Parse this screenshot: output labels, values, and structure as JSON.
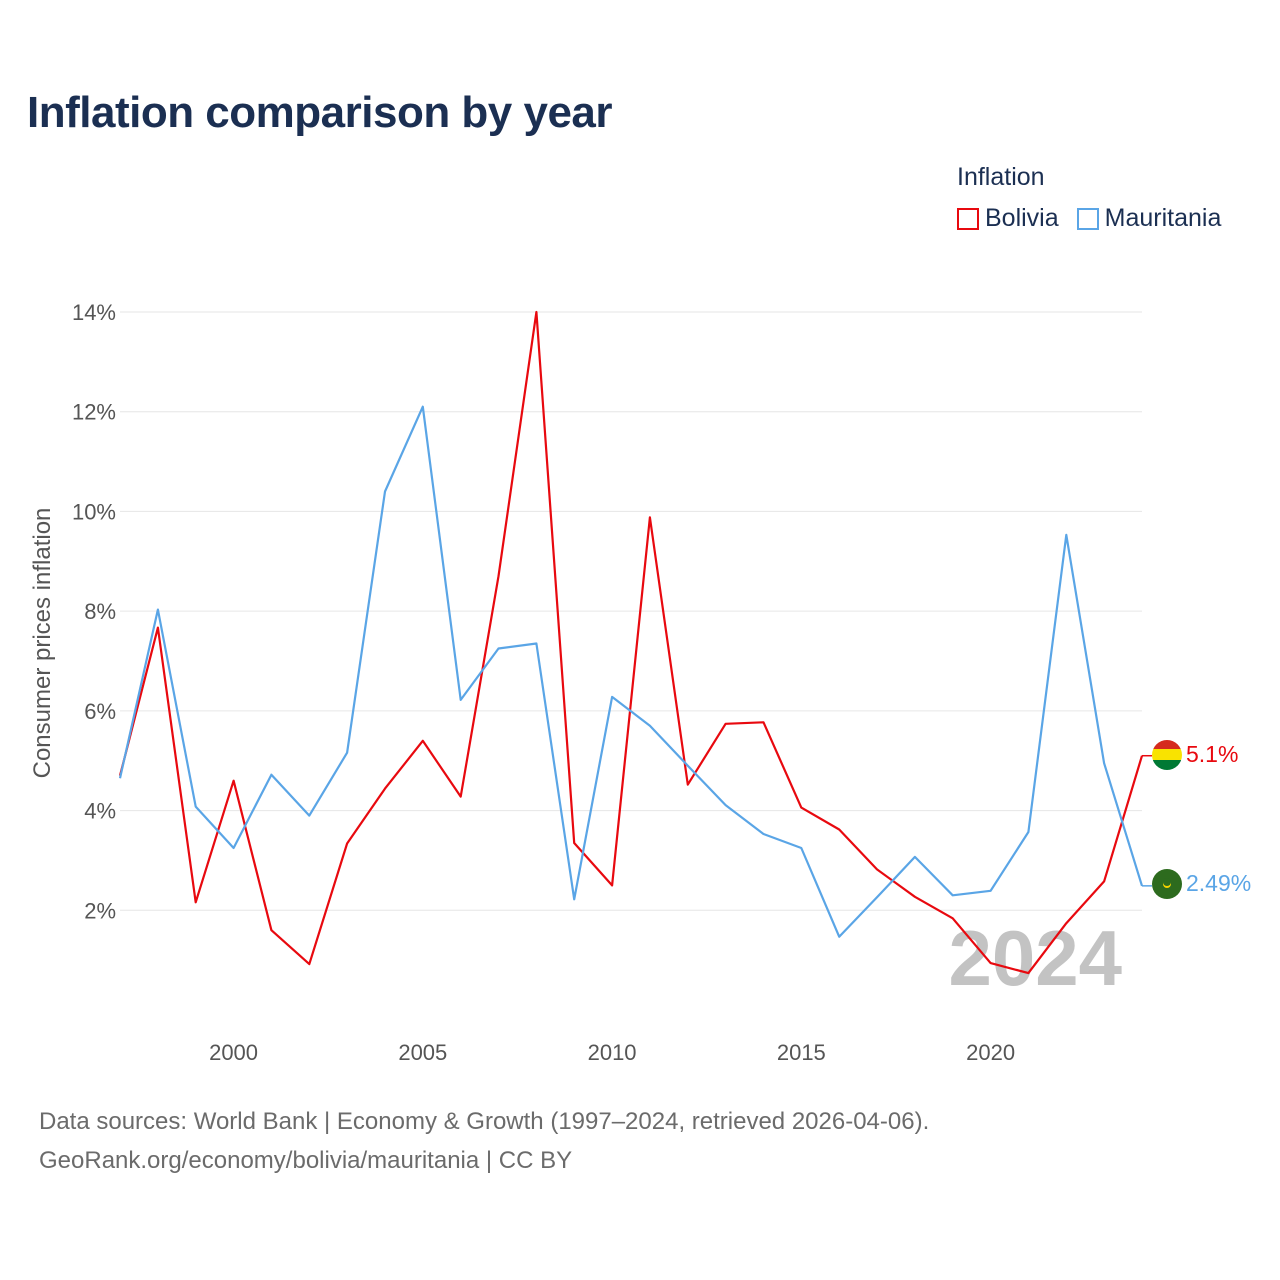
{
  "title": "Inflation comparison by year",
  "legend": {
    "title": "Inflation",
    "items": [
      {
        "label": "Bolivia",
        "color": "#e8090f"
      },
      {
        "label": "Mauritania",
        "color": "#5aa5e6"
      }
    ]
  },
  "chart_data": {
    "type": "line",
    "title": "Inflation comparison by year",
    "ylabel": "Consumer prices inflation",
    "xlabel": "",
    "x": [
      1997,
      1998,
      1999,
      2000,
      2001,
      2002,
      2003,
      2004,
      2005,
      2006,
      2007,
      2008,
      2009,
      2010,
      2011,
      2012,
      2013,
      2014,
      2015,
      2016,
      2017,
      2018,
      2019,
      2020,
      2021,
      2022,
      2023,
      2024
    ],
    "xlim": [
      1997,
      2024
    ],
    "ylim": [
      0,
      14
    ],
    "xticks": [
      2000,
      2005,
      2010,
      2015,
      2020
    ],
    "yticks": [
      2,
      4,
      6,
      8,
      10,
      12,
      14
    ],
    "ytick_labels": [
      "2%",
      "4%",
      "6%",
      "8%",
      "10%",
      "12%",
      "14%"
    ],
    "series": [
      {
        "name": "Bolivia",
        "color": "#e8090f",
        "end_label": "5.1%",
        "values": [
          4.7,
          7.67,
          2.16,
          4.6,
          1.6,
          0.92,
          3.34,
          4.44,
          5.4,
          4.28,
          8.7,
          14.0,
          3.35,
          2.5,
          9.88,
          4.52,
          5.74,
          5.77,
          4.06,
          3.62,
          2.82,
          2.27,
          1.84,
          0.94,
          0.74,
          1.74,
          2.58,
          5.1
        ]
      },
      {
        "name": "Mauritania",
        "color": "#5aa5e6",
        "end_label": "2.49%",
        "values": [
          4.65,
          8.03,
          4.08,
          3.25,
          4.72,
          3.9,
          5.16,
          10.4,
          12.1,
          6.22,
          7.25,
          7.35,
          2.22,
          6.28,
          5.7,
          4.9,
          4.11,
          3.53,
          3.25,
          1.47,
          2.26,
          3.07,
          2.3,
          2.39,
          3.57,
          9.53,
          4.95,
          2.49
        ]
      }
    ],
    "watermark": "2024"
  },
  "footer": {
    "line1": "Data sources: World Bank | Economy & Growth (1997–2024, retrieved 2026-04-06).",
    "line2": "GeoRank.org/economy/bolivia/mauritania | CC BY"
  }
}
